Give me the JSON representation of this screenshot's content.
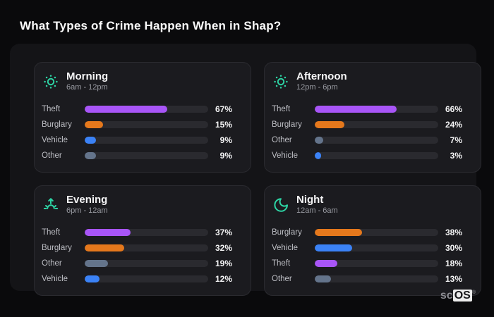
{
  "page": {
    "title": "What Types of Crime Happen When in Shap?"
  },
  "brand": {
    "prefix": "sc",
    "suffix": "OS",
    "reg": "®"
  },
  "colors": {
    "theft": "#a855f7",
    "burglary": "#e5781c",
    "vehicle": "#3b82f6",
    "other": "#64748b",
    "icon_accent": "#2dd4a4",
    "bar_track": "#2a2a2f",
    "panel_bg": "#1b1b1f",
    "container_bg": "#141417",
    "page_bg": "#0a0a0c"
  },
  "panels": [
    {
      "title": "Morning",
      "time_range": "6am - 12pm",
      "icon": "sun-icon",
      "rows": [
        {
          "label": "Theft",
          "value": 67,
          "value_label": "67%",
          "color": "#a855f7"
        },
        {
          "label": "Burglary",
          "value": 15,
          "value_label": "15%",
          "color": "#e5781c"
        },
        {
          "label": "Vehicle",
          "value": 9,
          "value_label": "9%",
          "color": "#3b82f6"
        },
        {
          "label": "Other",
          "value": 9,
          "value_label": "9%",
          "color": "#64748b"
        }
      ]
    },
    {
      "title": "Afternoon",
      "time_range": "12pm - 6pm",
      "icon": "sun-icon",
      "rows": [
        {
          "label": "Theft",
          "value": 66,
          "value_label": "66%",
          "color": "#a855f7"
        },
        {
          "label": "Burglary",
          "value": 24,
          "value_label": "24%",
          "color": "#e5781c"
        },
        {
          "label": "Other",
          "value": 7,
          "value_label": "7%",
          "color": "#64748b"
        },
        {
          "label": "Vehicle",
          "value": 3,
          "value_label": "3%",
          "color": "#3b82f6"
        }
      ]
    },
    {
      "title": "Evening",
      "time_range": "6pm - 12am",
      "icon": "sunrise-icon",
      "rows": [
        {
          "label": "Theft",
          "value": 37,
          "value_label": "37%",
          "color": "#a855f7"
        },
        {
          "label": "Burglary",
          "value": 32,
          "value_label": "32%",
          "color": "#e5781c"
        },
        {
          "label": "Other",
          "value": 19,
          "value_label": "19%",
          "color": "#64748b"
        },
        {
          "label": "Vehicle",
          "value": 12,
          "value_label": "12%",
          "color": "#3b82f6"
        }
      ]
    },
    {
      "title": "Night",
      "time_range": "12am - 6am",
      "icon": "moon-icon",
      "rows": [
        {
          "label": "Burglary",
          "value": 38,
          "value_label": "38%",
          "color": "#e5781c"
        },
        {
          "label": "Vehicle",
          "value": 30,
          "value_label": "30%",
          "color": "#3b82f6"
        },
        {
          "label": "Theft",
          "value": 18,
          "value_label": "18%",
          "color": "#a855f7"
        },
        {
          "label": "Other",
          "value": 13,
          "value_label": "13%",
          "color": "#64748b"
        }
      ]
    }
  ],
  "chart_data": [
    {
      "type": "bar",
      "orientation": "horizontal",
      "title": "Morning",
      "subtitle": "6am - 12pm",
      "categories": [
        "Theft",
        "Burglary",
        "Vehicle",
        "Other"
      ],
      "values": [
        67,
        15,
        9,
        9
      ],
      "colors": [
        "#a855f7",
        "#e5781c",
        "#3b82f6",
        "#64748b"
      ],
      "unit": "%",
      "xlim": [
        0,
        100
      ],
      "grid": false,
      "legend": false,
      "value_labels": true
    },
    {
      "type": "bar",
      "orientation": "horizontal",
      "title": "Afternoon",
      "subtitle": "12pm - 6pm",
      "categories": [
        "Theft",
        "Burglary",
        "Other",
        "Vehicle"
      ],
      "values": [
        66,
        24,
        7,
        3
      ],
      "colors": [
        "#a855f7",
        "#e5781c",
        "#64748b",
        "#3b82f6"
      ],
      "unit": "%",
      "xlim": [
        0,
        100
      ],
      "grid": false,
      "legend": false,
      "value_labels": true
    },
    {
      "type": "bar",
      "orientation": "horizontal",
      "title": "Evening",
      "subtitle": "6pm - 12am",
      "categories": [
        "Theft",
        "Burglary",
        "Other",
        "Vehicle"
      ],
      "values": [
        37,
        32,
        19,
        12
      ],
      "colors": [
        "#a855f7",
        "#e5781c",
        "#64748b",
        "#3b82f6"
      ],
      "unit": "%",
      "xlim": [
        0,
        100
      ],
      "grid": false,
      "legend": false,
      "value_labels": true
    },
    {
      "type": "bar",
      "orientation": "horizontal",
      "title": "Night",
      "subtitle": "12am - 6am",
      "categories": [
        "Burglary",
        "Vehicle",
        "Theft",
        "Other"
      ],
      "values": [
        38,
        30,
        18,
        13
      ],
      "colors": [
        "#e5781c",
        "#3b82f6",
        "#a855f7",
        "#64748b"
      ],
      "unit": "%",
      "xlim": [
        0,
        100
      ],
      "grid": false,
      "legend": false,
      "value_labels": true
    }
  ]
}
